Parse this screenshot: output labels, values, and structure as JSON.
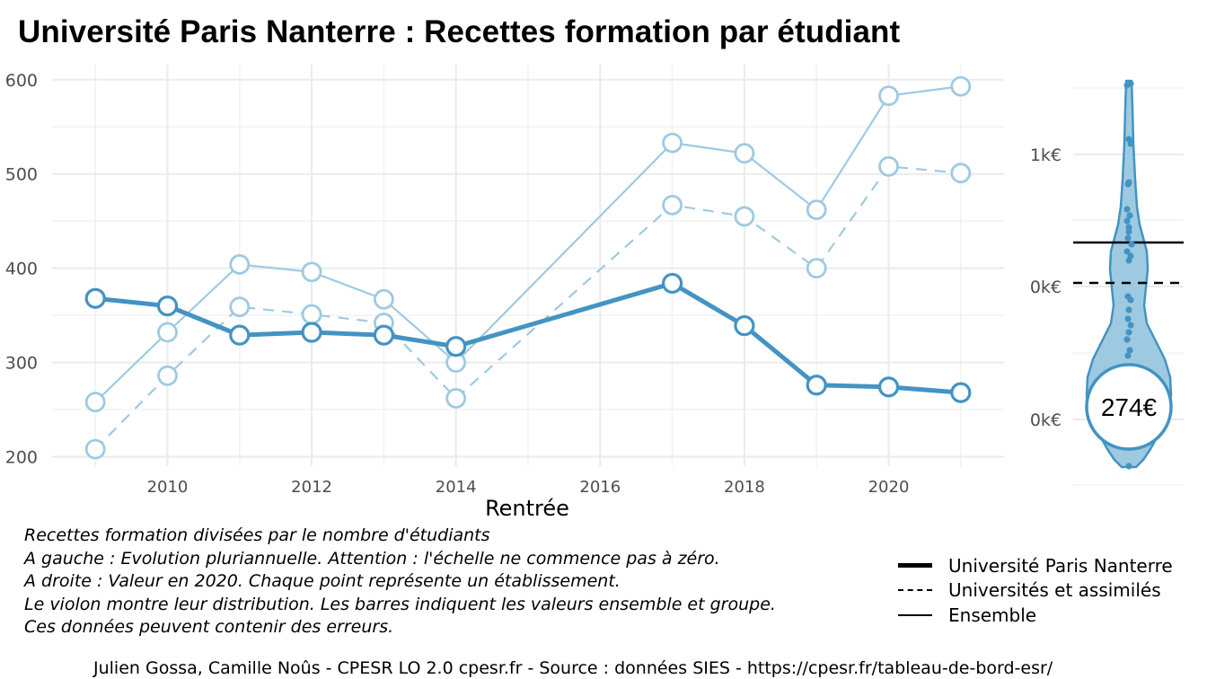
{
  "title": "Université Paris Nanterre  :  Recettes formation par étudiant",
  "chart_data": [
    {
      "type": "line",
      "xlabel": "Rentrée",
      "ylabel": "",
      "xlim": [
        2008.4,
        2021.6
      ],
      "ylim": [
        190,
        616
      ],
      "x_ticks": [
        2010,
        2012,
        2014,
        2016,
        2018,
        2020
      ],
      "y_ticks": [
        200,
        300,
        400,
        500,
        600
      ],
      "grid": true,
      "series": [
        {
          "name": "Université Paris Nanterre",
          "style": "solid-thick",
          "color": "#4393c3",
          "x": [
            2009,
            2010,
            2011,
            2012,
            2013,
            2014,
            2017,
            2018,
            2019,
            2020,
            2021
          ],
          "y": [
            368,
            360,
            329,
            332,
            329,
            317,
            384,
            339,
            276,
            274,
            268
          ]
        },
        {
          "name": "Universités et assimilés",
          "style": "dashed",
          "color": "#9ecae1",
          "x": [
            2009,
            2010,
            2011,
            2012,
            2013,
            2014,
            2017,
            2018,
            2019,
            2020,
            2021
          ],
          "y": [
            208,
            286,
            359,
            351,
            342,
            262,
            467,
            455,
            400,
            508,
            501
          ]
        },
        {
          "name": "Ensemble",
          "style": "solid-thin",
          "color": "#9ecae1",
          "x": [
            2009,
            2010,
            2011,
            2012,
            2013,
            2014,
            2017,
            2018,
            2019,
            2020,
            2021
          ],
          "y": [
            258,
            332,
            404,
            396,
            367,
            300,
            533,
            522,
            462,
            583,
            593
          ]
        }
      ]
    },
    {
      "type": "violin",
      "y_tick_labels": [
        "1k€",
        "0k€",
        "0k€"
      ],
      "highlight_label": "274€",
      "color": "#4393c3",
      "fill": "#9ecae1"
    }
  ],
  "caption": [
    "Recettes formation divisées par le nombre d'étudiants",
    "A gauche : Evolution pluriannuelle. Attention : l'échelle ne commence pas à zéro.",
    "A droite : Valeur en 2020. Chaque point représente un établissement.",
    "Le violon montre leur distribution. Les barres indiquent les valeurs ensemble et groupe.",
    "Ces données peuvent contenir des erreurs."
  ],
  "legend": [
    {
      "label": "Université Paris Nanterre",
      "style": "thick"
    },
    {
      "label": "Universités et assimilés",
      "style": "dashed"
    },
    {
      "label": "Ensemble",
      "style": "thin"
    }
  ],
  "footer": "Julien Gossa, Camille Noûs - CPESR LO 2.0 cpesr.fr - Source : données SIES - https://cpesr.fr/tableau-de-bord-esr/"
}
